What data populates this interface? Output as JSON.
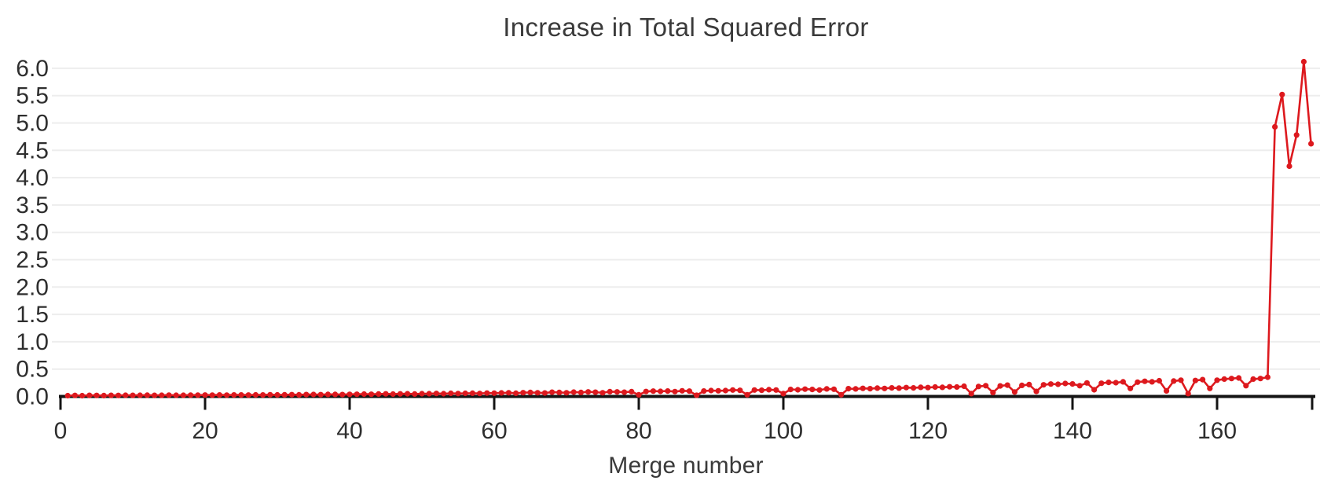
{
  "chart_data": {
    "type": "line",
    "title": "Increase in Total Squared Error",
    "xlabel": "Merge number",
    "ylabel": "",
    "legend": "none",
    "grid": "horizontal",
    "x_start": 1,
    "xlim": [
      0,
      173.5
    ],
    "ylim": [
      0,
      6.2
    ],
    "x_ticks": [
      0,
      20,
      40,
      60,
      80,
      100,
      120,
      140,
      160
    ],
    "y_ticks": [
      "0.0",
      "0.5",
      "1.0",
      "1.5",
      "2.0",
      "2.5",
      "3.0",
      "3.5",
      "4.0",
      "4.5",
      "5.0",
      "5.5",
      "6.0"
    ],
    "line_color": "#dd191e",
    "axis_color": "#141414",
    "grid_color": "#ededed",
    "text_color": "#2e2e2e",
    "values": [
      0.015,
      0.018,
      0.015,
      0.02,
      0.018,
      0.016,
      0.02,
      0.019,
      0.022,
      0.02,
      0.021,
      0.023,
      0.02,
      0.022,
      0.024,
      0.022,
      0.021,
      0.024,
      0.025,
      0.026,
      0.024,
      0.027,
      0.025,
      0.028,
      0.027,
      0.026,
      0.029,
      0.028,
      0.031,
      0.029,
      0.03,
      0.033,
      0.03,
      0.034,
      0.036,
      0.033,
      0.037,
      0.038,
      0.035,
      0.039,
      0.04,
      0.043,
      0.04,
      0.044,
      0.047,
      0.043,
      0.048,
      0.049,
      0.045,
      0.05,
      0.051,
      0.054,
      0.05,
      0.057,
      0.053,
      0.058,
      0.059,
      0.055,
      0.062,
      0.06,
      0.064,
      0.068,
      0.059,
      0.069,
      0.073,
      0.068,
      0.063,
      0.078,
      0.073,
      0.068,
      0.079,
      0.073,
      0.083,
      0.078,
      0.068,
      0.088,
      0.083,
      0.078,
      0.088,
      0.03,
      0.09,
      0.098,
      0.093,
      0.099,
      0.089,
      0.103,
      0.098,
      0.022,
      0.099,
      0.108,
      0.103,
      0.108,
      0.118,
      0.112,
      0.032,
      0.118,
      0.113,
      0.123,
      0.118,
      0.052,
      0.128,
      0.122,
      0.133,
      0.128,
      0.118,
      0.138,
      0.132,
      0.032,
      0.142,
      0.138,
      0.148,
      0.142,
      0.152,
      0.147,
      0.157,
      0.152,
      0.162,
      0.157,
      0.167,
      0.162,
      0.172,
      0.167,
      0.177,
      0.172,
      0.187,
      0.052,
      0.182,
      0.197,
      0.072,
      0.192,
      0.207,
      0.082,
      0.202,
      0.217,
      0.092,
      0.212,
      0.227,
      0.222,
      0.237,
      0.228,
      0.197,
      0.247,
      0.122,
      0.242,
      0.257,
      0.252,
      0.267,
      0.147,
      0.262,
      0.277,
      0.267,
      0.287,
      0.102,
      0.282,
      0.297,
      0.052,
      0.292,
      0.307,
      0.147,
      0.297,
      0.317,
      0.327,
      0.337,
      0.197,
      0.317,
      0.327,
      0.352,
      4.93,
      5.52,
      4.21,
      4.78,
      6.12,
      4.62
    ]
  }
}
